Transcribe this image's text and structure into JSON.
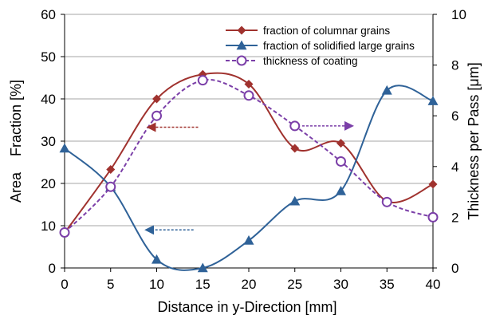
{
  "chart_data": {
    "type": "line",
    "x": [
      0,
      5,
      10,
      15,
      20,
      25,
      30,
      35,
      40
    ],
    "xlabel": "Distance in y-Direction [mm]",
    "ylabel": "Area    Fraction [%]",
    "y2label": "Thickness per Pass [μm]",
    "xlim": [
      0,
      40
    ],
    "ylim": [
      0,
      60
    ],
    "y2lim": [
      0,
      10
    ],
    "xticks": [
      "0",
      "5",
      "10",
      "15",
      "20",
      "25",
      "30",
      "35",
      "40"
    ],
    "yticks": [
      "0",
      "10",
      "20",
      "30",
      "40",
      "50",
      "60"
    ],
    "y2ticks": [
      "0",
      "2",
      "4",
      "6",
      "8",
      "10"
    ],
    "grid": "horizontal",
    "legend_position": "top-right",
    "series": [
      {
        "name": "fraction of columnar grains",
        "axis": "left",
        "color": "#A0322E",
        "marker": "diamond",
        "line": "solid",
        "values": [
          8.3,
          23.3,
          40.0,
          45.8,
          43.5,
          28.3,
          29.5,
          15.8,
          19.8
        ]
      },
      {
        "name": "fraction of solidified large grains",
        "axis": "left",
        "color": "#2F6298",
        "marker": "triangle",
        "line": "solid",
        "values": [
          28.3,
          19.2,
          2.0,
          0.0,
          6.5,
          15.8,
          18.2,
          42.0,
          39.5
        ]
      },
      {
        "name": "thickness of coating",
        "axis": "right",
        "color": "#7B3FA8",
        "marker": "open-circle",
        "line": "dashed",
        "values": [
          1.4,
          3.2,
          6.0,
          7.4,
          6.8,
          5.6,
          4.2,
          2.6,
          2.0
        ]
      }
    ],
    "annotations": [
      {
        "type": "arrow",
        "direction": "left",
        "color": "#A0322E",
        "x_from": 14.5,
        "x_to": 9.0,
        "y": 33.3,
        "axis": "left"
      },
      {
        "type": "arrow",
        "direction": "right",
        "color": "#7B3FA8",
        "x_from": 25.8,
        "x_to": 31.3,
        "y": 5.6,
        "axis": "right"
      },
      {
        "type": "arrow",
        "direction": "left",
        "color": "#2F6298",
        "x_from": 14.0,
        "x_to": 8.8,
        "y": 9.0,
        "axis": "left"
      }
    ]
  }
}
